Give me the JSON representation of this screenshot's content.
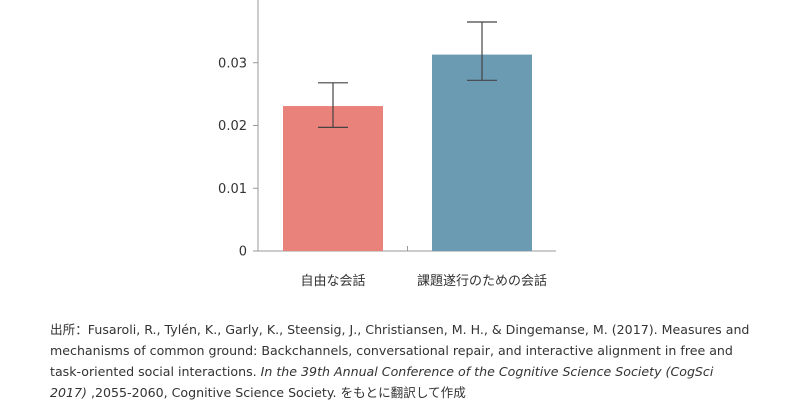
{
  "chart_data": {
    "type": "bar",
    "categories": [
      "自由な会話",
      "課題遂行のための会話"
    ],
    "values": [
      0.0231,
      0.0313
    ],
    "error_low": [
      0.0197,
      0.0272
    ],
    "error_high": [
      0.0268,
      0.0365
    ],
    "colors": [
      "#e8827b",
      "#6b9bb2"
    ],
    "yticks": [
      "0",
      "0.01",
      "0.02",
      "0.03"
    ],
    "ytick_values": [
      0,
      0.01,
      0.02,
      0.03
    ],
    "ylim": [
      0,
      0.04
    ],
    "grid": false,
    "axis_color": "#999999",
    "errorbar_color": "#444444"
  },
  "caption": {
    "prefix": "出所：Fusaroli, R., Tylén, K., Garly, K., Steensig, J., Christiansen, M. H., & Dingemanse, M. (2017). Measures and mechanisms of common ground: Backchannels, conversational repair, and interactive alignment in free and task-oriented social interactions. ",
    "italic": "In the 39th Annual Conference of the Cognitive Science Society (CogSci 2017)",
    "suffix": " ,2055-2060, Cognitive Science Society. をもとに翻訳して作成"
  }
}
